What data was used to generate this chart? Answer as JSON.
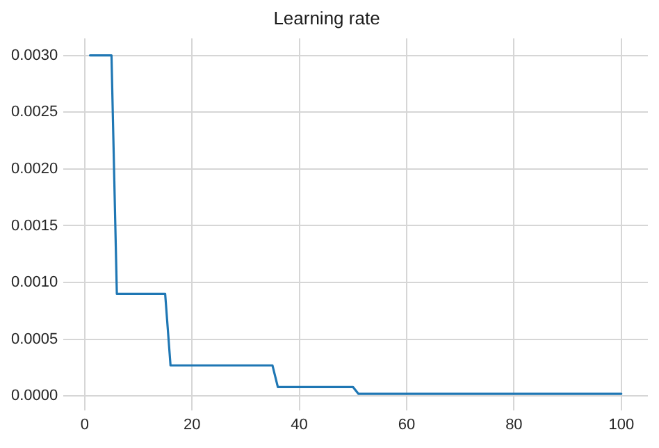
{
  "chart_data": {
    "type": "line",
    "title": "Learning rate",
    "x": [
      1,
      5,
      6,
      15,
      16,
      35,
      36,
      50,
      51,
      100
    ],
    "series": [
      {
        "color": "#1f77b4",
        "values": [
          0.003,
          0.003,
          0.0009,
          0.0009,
          0.00027,
          0.00027,
          8e-05,
          8e-05,
          2e-05,
          2e-05
        ]
      }
    ],
    "xlim": [
      -3.95,
      104.95
    ],
    "xticks": [
      0,
      20,
      40,
      60,
      80,
      100
    ],
    "ylim": [
      -0.000124,
      0.003149
    ],
    "yticks": [
      {
        "value": 0,
        "label": "0.0000"
      },
      {
        "value": 0.0005,
        "label": "0.0005"
      },
      {
        "value": 0.001,
        "label": "0.0010"
      },
      {
        "value": 0.0015,
        "label": "0.0015"
      },
      {
        "value": 0.002,
        "label": "0.0020"
      },
      {
        "value": 0.0025,
        "label": "0.0025"
      },
      {
        "value": 0.003,
        "label": "0.0030"
      }
    ],
    "grid": true,
    "legend": false,
    "marker": "none",
    "line_style": "solid"
  }
}
